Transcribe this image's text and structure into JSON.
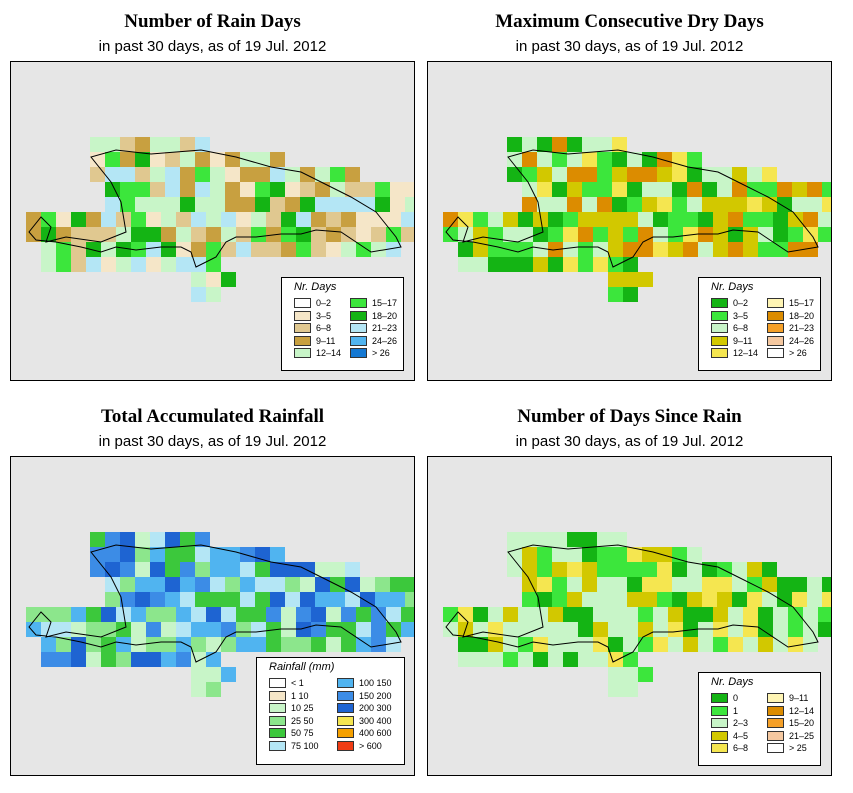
{
  "panels": [
    {
      "id": "rain_days",
      "title": "Number of Rain Days",
      "subtitle": "in past 30 days, as of  19 Jul. 2012",
      "legend": {
        "title": "Nr. Days",
        "items": [
          {
            "label": "0–2",
            "color": "#ffffff"
          },
          {
            "label": "3–5",
            "color": "#f5e6c8"
          },
          {
            "label": "6–8",
            "color": "#e0c890"
          },
          {
            "label": "9–11",
            "color": "#c8a040"
          },
          {
            "label": "12–14",
            "color": "#c8f5c8"
          },
          {
            "label": "15–17",
            "color": "#3ce63c"
          },
          {
            "label": "18–20",
            "color": "#14b414"
          },
          {
            "label": "21–23",
            "color": "#b4e6f5"
          },
          {
            "label": "24–26",
            "color": "#50b4f0"
          },
          {
            "label": "> 26",
            "color": "#1478d2"
          }
        ]
      }
    },
    {
      "id": "dry_days",
      "title": "Maximum Consecutive Dry Days",
      "subtitle": "in past 30 days, as of  19 Jul. 2012",
      "legend": {
        "title": "Nr. Days",
        "items": [
          {
            "label": "0–2",
            "color": "#14b414"
          },
          {
            "label": "3–5",
            "color": "#3ce63c"
          },
          {
            "label": "6–8",
            "color": "#c8f5c8"
          },
          {
            "label": "9–11",
            "color": "#d2c800"
          },
          {
            "label": "12–14",
            "color": "#f5e650"
          },
          {
            "label": "15–17",
            "color": "#fff5b4"
          },
          {
            "label": "18–20",
            "color": "#dc8c00"
          },
          {
            "label": "21–23",
            "color": "#f5a028"
          },
          {
            "label": "24–26",
            "color": "#f5c8a0"
          },
          {
            "label": "> 26",
            "color": "#ffffff"
          }
        ]
      }
    },
    {
      "id": "rainfall",
      "title": "Total Accumulated Rainfall",
      "subtitle": "in past 30 days, as of  19 Jul. 2012",
      "legend": {
        "title": "Rainfall (mm)",
        "items": [
          {
            "label": "< 1",
            "color": "#ffffff"
          },
          {
            "label": "1   10",
            "color": "#f5e6c8"
          },
          {
            "label": "10   25",
            "color": "#c8f5c8"
          },
          {
            "label": "25   50",
            "color": "#8ce68c"
          },
          {
            "label": "50   75",
            "color": "#3cc83c"
          },
          {
            "label": "75  100",
            "color": "#b4e6f5"
          },
          {
            "label": "100  150",
            "color": "#50b4f0"
          },
          {
            "label": "150  200",
            "color": "#3c8ce6"
          },
          {
            "label": "200  300",
            "color": "#1e64d2"
          },
          {
            "label": "300  400",
            "color": "#f5e650"
          },
          {
            "label": "400  600",
            "color": "#f5a000"
          },
          {
            "label": "> 600",
            "color": "#f03c14"
          }
        ]
      }
    },
    {
      "id": "days_since_rain",
      "title": "Number of Days Since Rain",
      "subtitle": "in past 30 days, as of  19 Jul. 2012",
      "legend": {
        "title": "Nr. Days",
        "items": [
          {
            "label": "0",
            "color": "#14b414"
          },
          {
            "label": "1",
            "color": "#3ce63c"
          },
          {
            "label": "2–3",
            "color": "#c8f5c8"
          },
          {
            "label": "4–5",
            "color": "#d2c800"
          },
          {
            "label": "6–8",
            "color": "#f5e650"
          },
          {
            "label": "9–11",
            "color": "#fff5b4"
          },
          {
            "label": "12–14",
            "color": "#dc8c00"
          },
          {
            "label": "15–20",
            "color": "#f5a028"
          },
          {
            "label": "21–25",
            "color": "#f5c8a0"
          },
          {
            "label": "> 25",
            "color": "#ffffff"
          }
        ]
      }
    }
  ]
}
